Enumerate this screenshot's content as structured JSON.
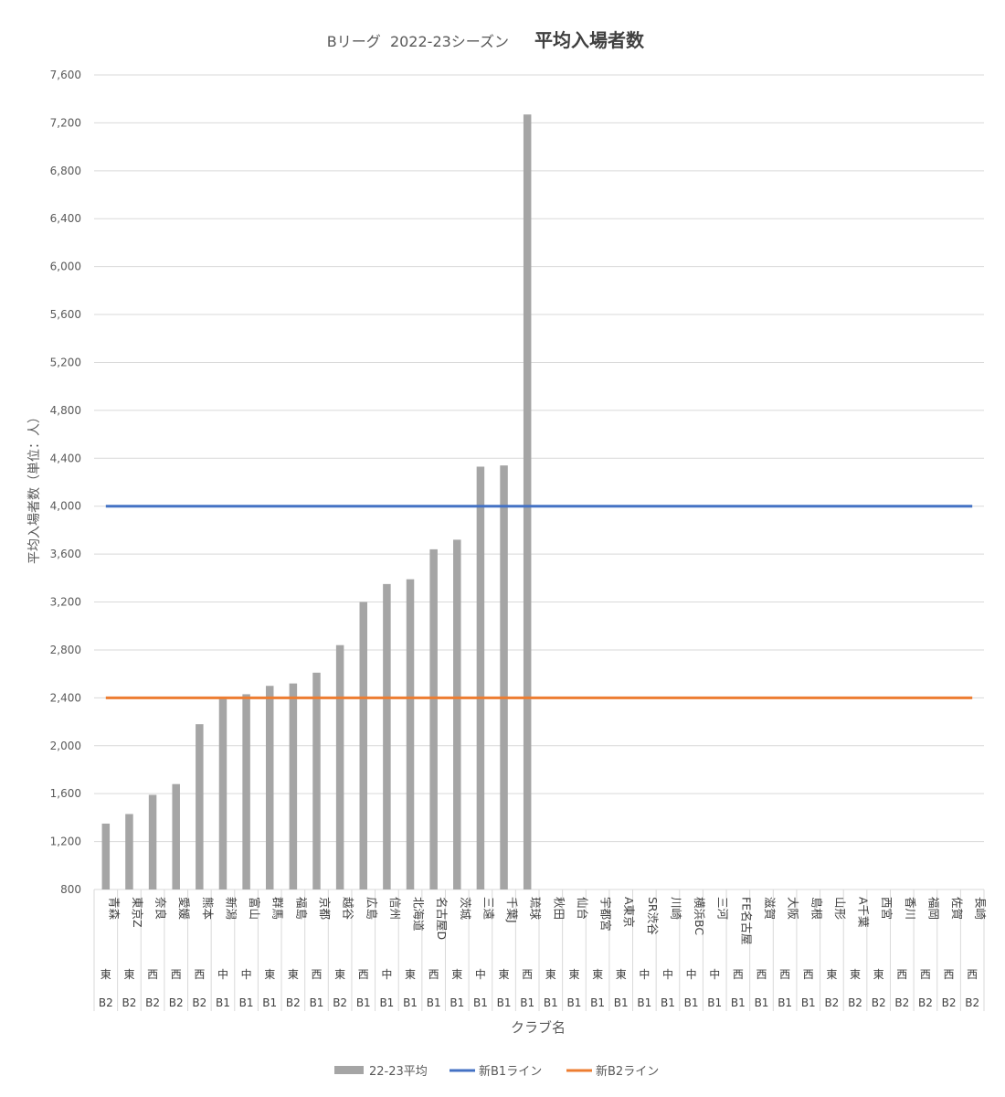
{
  "chart_data": {
    "type": "bar",
    "title_prefix": "Bリーグ  2022-23シーズン",
    "title_main": "平均入場者数",
    "xlabel": "クラブ名",
    "ylabel": "平均入場者数（単位：人）",
    "ylim": [
      800,
      7600
    ],
    "yticks": [
      800,
      1200,
      1600,
      2000,
      2400,
      2800,
      3200,
      3600,
      4000,
      4400,
      4800,
      5200,
      5600,
      6000,
      6400,
      6800,
      7200,
      7600
    ],
    "ytick_labels": [
      "800",
      "1,200",
      "1,600",
      "2,000",
      "2,400",
      "2,800",
      "3,200",
      "3,600",
      "4,000",
      "4,400",
      "4,800",
      "5,200",
      "5,600",
      "6,000",
      "6,400",
      "6,800",
      "7,200",
      "7,600"
    ],
    "grid": true,
    "legend_position": "bottom",
    "categories": [
      "青森",
      "東京Z",
      "奈良",
      "愛媛",
      "熊本",
      "新潟",
      "富山",
      "群馬",
      "福島",
      "京都",
      "越谷",
      "広島",
      "信州",
      "北海道",
      "名古屋D",
      "茨城",
      "三遠",
      "千葉J",
      "琉球",
      "秋田",
      "仙台",
      "宇都宮",
      "A東京",
      "SR渋谷",
      "川崎",
      "横浜BC",
      "三河",
      "FE名古屋",
      "滋賀",
      "大阪",
      "島根",
      "山形",
      "A千葉",
      "西宮",
      "香川",
      "福岡",
      "佐賀",
      "長崎"
    ],
    "regions": [
      "東",
      "東",
      "西",
      "西",
      "西",
      "中",
      "中",
      "東",
      "東",
      "西",
      "東",
      "西",
      "中",
      "東",
      "西",
      "東",
      "中",
      "東",
      "西",
      "東",
      "東",
      "東",
      "東",
      "中",
      "中",
      "中",
      "中",
      "西",
      "西",
      "西",
      "西",
      "東",
      "東",
      "東",
      "西",
      "西",
      "西",
      "西"
    ],
    "divisions": [
      "B2",
      "B2",
      "B2",
      "B2",
      "B2",
      "B1",
      "B1",
      "B1",
      "B2",
      "B1",
      "B2",
      "B1",
      "B1",
      "B1",
      "B1",
      "B1",
      "B1",
      "B1",
      "B1",
      "B1",
      "B1",
      "B1",
      "B1",
      "B1",
      "B1",
      "B1",
      "B1",
      "B1",
      "B1",
      "B1",
      "B1",
      "B2",
      "B2",
      "B2",
      "B2",
      "B2",
      "B2",
      "B2"
    ],
    "series": [
      {
        "name": "22-23平均",
        "color": "#a5a5a5",
        "values": [
          1350,
          1430,
          1590,
          1680,
          2180,
          2400,
          2430,
          2500,
          2520,
          2610,
          2840,
          3200,
          3350,
          3390,
          3640,
          3720,
          4330,
          4340,
          7270,
          null,
          null,
          null,
          null,
          null,
          null,
          null,
          null,
          null,
          null,
          null,
          null,
          null,
          null,
          null,
          null,
          null,
          null,
          null
        ]
      }
    ],
    "reference_lines": [
      {
        "name": "新B1ライン",
        "value": 4000,
        "color": "#4472c4"
      },
      {
        "name": "新B2ライン",
        "value": 2400,
        "color": "#ed7d31"
      }
    ]
  }
}
